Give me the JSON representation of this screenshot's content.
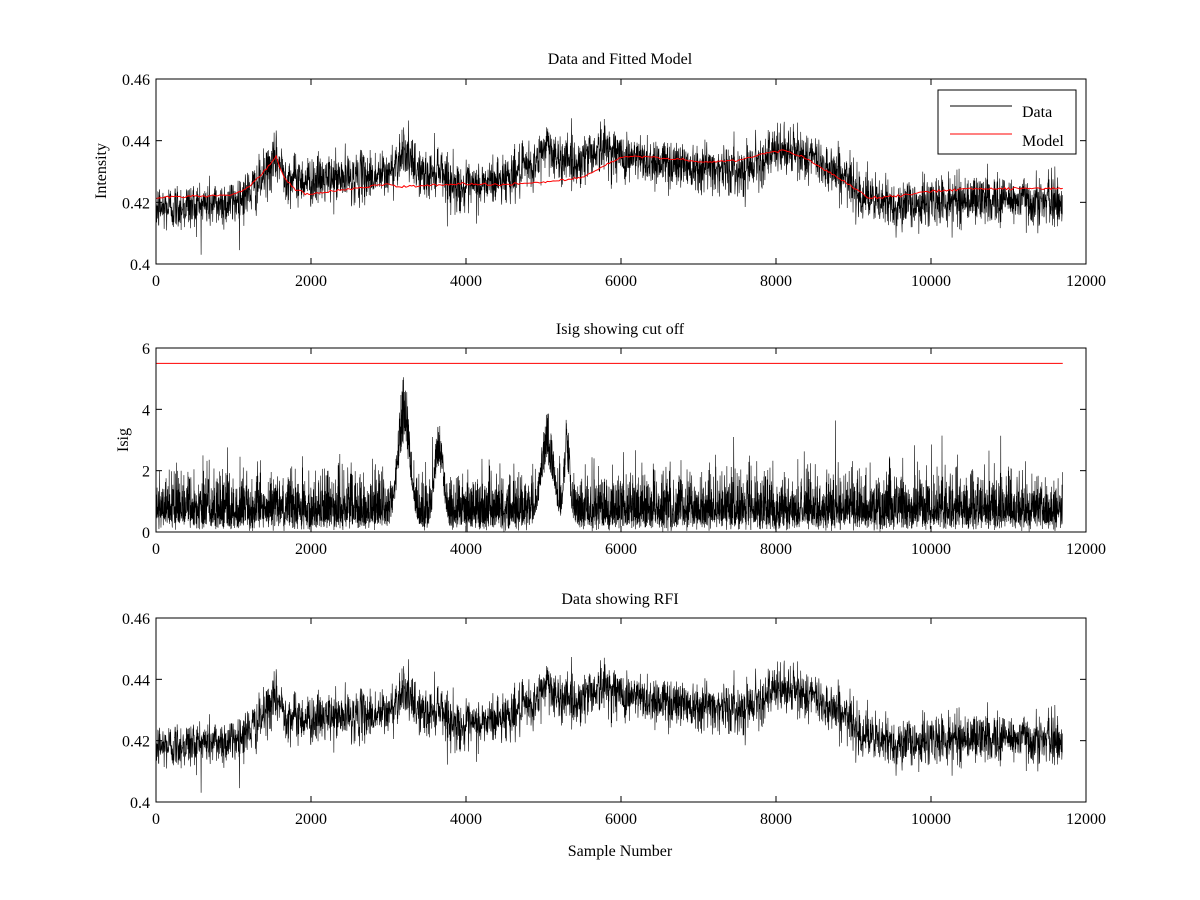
{
  "figure": {
    "background": "#ffffff"
  },
  "colors": {
    "data": "#000000",
    "model": "#ff0000",
    "axes": "#000000"
  },
  "chart_data": [
    {
      "type": "line",
      "title": "Data and Fitted Model",
      "xlabel": "",
      "ylabel": "Intensity",
      "xlim": [
        0,
        12000
      ],
      "ylim": [
        0.4,
        0.46
      ],
      "xticks": [
        0,
        2000,
        4000,
        6000,
        8000,
        10000,
        12000
      ],
      "xtick_labels": [
        "0",
        "2000",
        "4000",
        "6000",
        "8000",
        "10000",
        "12000"
      ],
      "yticks": [
        0.4,
        0.42,
        0.44,
        0.46
      ],
      "ytick_labels": [
        "0.4",
        "0.42",
        "0.44",
        "0.46"
      ],
      "legend": {
        "placement": "top-right",
        "entries": [
          "Data",
          "Model"
        ]
      },
      "grid": false,
      "series": [
        {
          "name": "Data",
          "color": "#000000",
          "n_samples": 11700,
          "noise_std": 0.004,
          "baseline_x": [
            0,
            500,
            1000,
            1300,
            1550,
            1700,
            2000,
            2500,
            3000,
            3100,
            3200,
            3300,
            3500,
            3650,
            3800,
            4000,
            4500,
            4900,
            5050,
            5200,
            5300,
            5400,
            5600,
            5800,
            6000,
            6200,
            6500,
            7000,
            7500,
            7800,
            8100,
            8400,
            8800,
            9100,
            9300,
            9600,
            10000,
            10500,
            11000,
            11700
          ],
          "baseline_y": [
            0.418,
            0.419,
            0.42,
            0.425,
            0.434,
            0.428,
            0.427,
            0.428,
            0.429,
            0.433,
            0.438,
            0.432,
            0.428,
            0.432,
            0.426,
            0.424,
            0.428,
            0.432,
            0.44,
            0.432,
            0.436,
            0.432,
            0.436,
            0.438,
            0.435,
            0.434,
            0.433,
            0.432,
            0.43,
            0.434,
            0.437,
            0.435,
            0.43,
            0.423,
            0.42,
            0.419,
            0.42,
            0.421,
            0.421,
            0.42
          ]
        },
        {
          "name": "Model",
          "color": "#ff0000",
          "x": [
            0,
            500,
            1000,
            1200,
            1400,
            1550,
            1650,
            1800,
            2000,
            2500,
            3000,
            3100,
            3500,
            4000,
            4500,
            5000,
            5500,
            5800,
            6000,
            6300,
            6700,
            7000,
            7500,
            7800,
            8100,
            8400,
            8800,
            9200,
            9500,
            10000,
            10500,
            11000,
            11700
          ],
          "y": [
            0.4215,
            0.422,
            0.4225,
            0.425,
            0.43,
            0.435,
            0.428,
            0.424,
            0.4225,
            0.4245,
            0.426,
            0.425,
            0.4255,
            0.426,
            0.4258,
            0.4265,
            0.428,
            0.432,
            0.4345,
            0.435,
            0.434,
            0.433,
            0.4335,
            0.4355,
            0.437,
            0.434,
            0.428,
            0.4215,
            0.422,
            0.4235,
            0.4245,
            0.4245,
            0.4245
          ]
        }
      ]
    },
    {
      "type": "line",
      "title": "Isig showing cut off",
      "xlabel": "",
      "ylabel": "Isig",
      "xlim": [
        0,
        12000
      ],
      "ylim": [
        0,
        6
      ],
      "xticks": [
        0,
        2000,
        4000,
        6000,
        8000,
        10000,
        12000
      ],
      "xtick_labels": [
        "0",
        "2000",
        "4000",
        "6000",
        "8000",
        "10000",
        "12000"
      ],
      "yticks": [
        0,
        2,
        4,
        6
      ],
      "ytick_labels": [
        "0",
        "2",
        "4",
        "6"
      ],
      "grid": false,
      "series": [
        {
          "color": "#000000",
          "n_samples": 11700,
          "typical_max": 2.5,
          "bursts": [
            {
              "center": 3200,
              "width": 120,
              "peak": 5.1
            },
            {
              "center": 3650,
              "width": 90,
              "peak": 3.6
            },
            {
              "center": 5050,
              "width": 130,
              "peak": 3.9
            },
            {
              "center": 5300,
              "width": 60,
              "peak": 3.8
            }
          ]
        },
        {
          "color": "#ff0000",
          "cutoff": 5.5,
          "x": [
            0,
            11700
          ]
        }
      ]
    },
    {
      "type": "line",
      "title": "Data showing RFI",
      "xlabel": "Sample Number",
      "ylabel": "",
      "xlim": [
        0,
        12000
      ],
      "ylim": [
        0.4,
        0.46
      ],
      "xticks": [
        0,
        2000,
        4000,
        6000,
        8000,
        10000,
        12000
      ],
      "xtick_labels": [
        "0",
        "2000",
        "4000",
        "6000",
        "8000",
        "10000",
        "12000"
      ],
      "yticks": [
        0.4,
        0.42,
        0.44,
        0.46
      ],
      "ytick_labels": [
        "0.4",
        "0.42",
        "0.44",
        "0.46"
      ],
      "grid": false,
      "series": [
        {
          "color": "#000000",
          "n_samples": 11700,
          "noise_std": 0.004,
          "same_as": "Data"
        }
      ]
    }
  ]
}
